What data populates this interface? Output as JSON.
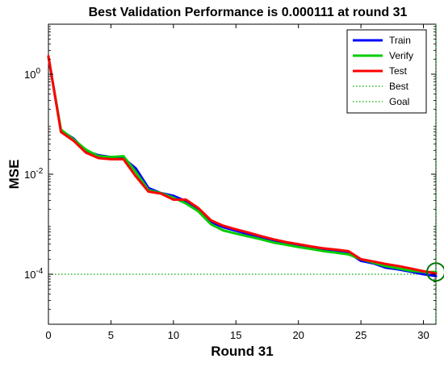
{
  "chart_data": {
    "type": "line",
    "title": "Best Validation Performance is 0.000111 at round 31",
    "xlabel": "Round 31",
    "ylabel": "MSE",
    "x_scale": "linear",
    "y_scale": "log",
    "xlim": [
      0,
      31
    ],
    "ylim": [
      1e-05,
      10
    ],
    "x_ticks": [
      0,
      5,
      10,
      15,
      20,
      25,
      30
    ],
    "x_tick_labels": [
      "0",
      "5",
      "10",
      "15",
      "20",
      "25",
      "30"
    ],
    "y_ticks": [
      1,
      0.01,
      0.0001
    ],
    "y_tick_labels": [
      {
        "base": "10",
        "exp": "0"
      },
      {
        "base": "10",
        "exp": "-2"
      },
      {
        "base": "10",
        "exp": "-4"
      }
    ],
    "grid": false,
    "legend_position": "top-right",
    "x": [
      0,
      1,
      2,
      3,
      4,
      5,
      6,
      7,
      8,
      9,
      10,
      11,
      12,
      13,
      14,
      15,
      16,
      17,
      18,
      19,
      20,
      21,
      22,
      23,
      24,
      25,
      26,
      27,
      28,
      29,
      30,
      31
    ],
    "series": [
      {
        "name": "Train",
        "color": "#0000ff",
        "style": "solid",
        "values": [
          2.2,
          0.075,
          0.052,
          0.029,
          0.024,
          0.022,
          0.021,
          0.013,
          0.0053,
          0.0042,
          0.0037,
          0.0029,
          0.0019,
          0.0011,
          0.00087,
          0.00074,
          0.00063,
          0.00054,
          0.00047,
          0.00041,
          0.00037,
          0.00034,
          0.00031,
          0.00029,
          0.00027,
          0.000185,
          0.000165,
          0.000135,
          0.000125,
          0.000112,
          0.0001,
          9.2e-05
        ]
      },
      {
        "name": "Verify",
        "color": "#00cc00",
        "style": "solid",
        "values": [
          2.2,
          0.078,
          0.05,
          0.031,
          0.023,
          0.022,
          0.023,
          0.011,
          0.0048,
          0.0042,
          0.0034,
          0.0026,
          0.0018,
          0.001,
          0.00075,
          0.00065,
          0.00057,
          0.0005,
          0.00043,
          0.00039,
          0.00035,
          0.00032,
          0.00029,
          0.00027,
          0.00025,
          0.0002,
          0.00017,
          0.000145,
          0.000131,
          0.000117,
          0.000111,
          0.000111
        ]
      },
      {
        "name": "Test",
        "color": "#ff0000",
        "style": "solid",
        "values": [
          2.3,
          0.07,
          0.047,
          0.027,
          0.021,
          0.02,
          0.02,
          0.009,
          0.0045,
          0.0041,
          0.0031,
          0.0031,
          0.0021,
          0.0012,
          0.00093,
          0.00079,
          0.00068,
          0.00058,
          0.0005,
          0.00044,
          0.0004,
          0.00036,
          0.00033,
          0.00031,
          0.00029,
          0.0002,
          0.00018,
          0.00016,
          0.000146,
          0.00013,
          0.000115,
          0.000104
        ]
      }
    ],
    "reference_lines": [
      {
        "name": "Best",
        "orientation": "vertical",
        "value": 31,
        "color": "#00aa00",
        "style": "dotted"
      },
      {
        "name": "Goal",
        "orientation": "horizontal",
        "value": 0.0001,
        "color": "#00aa00",
        "style": "dotted"
      }
    ],
    "best_marker": {
      "x": 31,
      "y": 0.000111,
      "color": "#007700"
    }
  }
}
